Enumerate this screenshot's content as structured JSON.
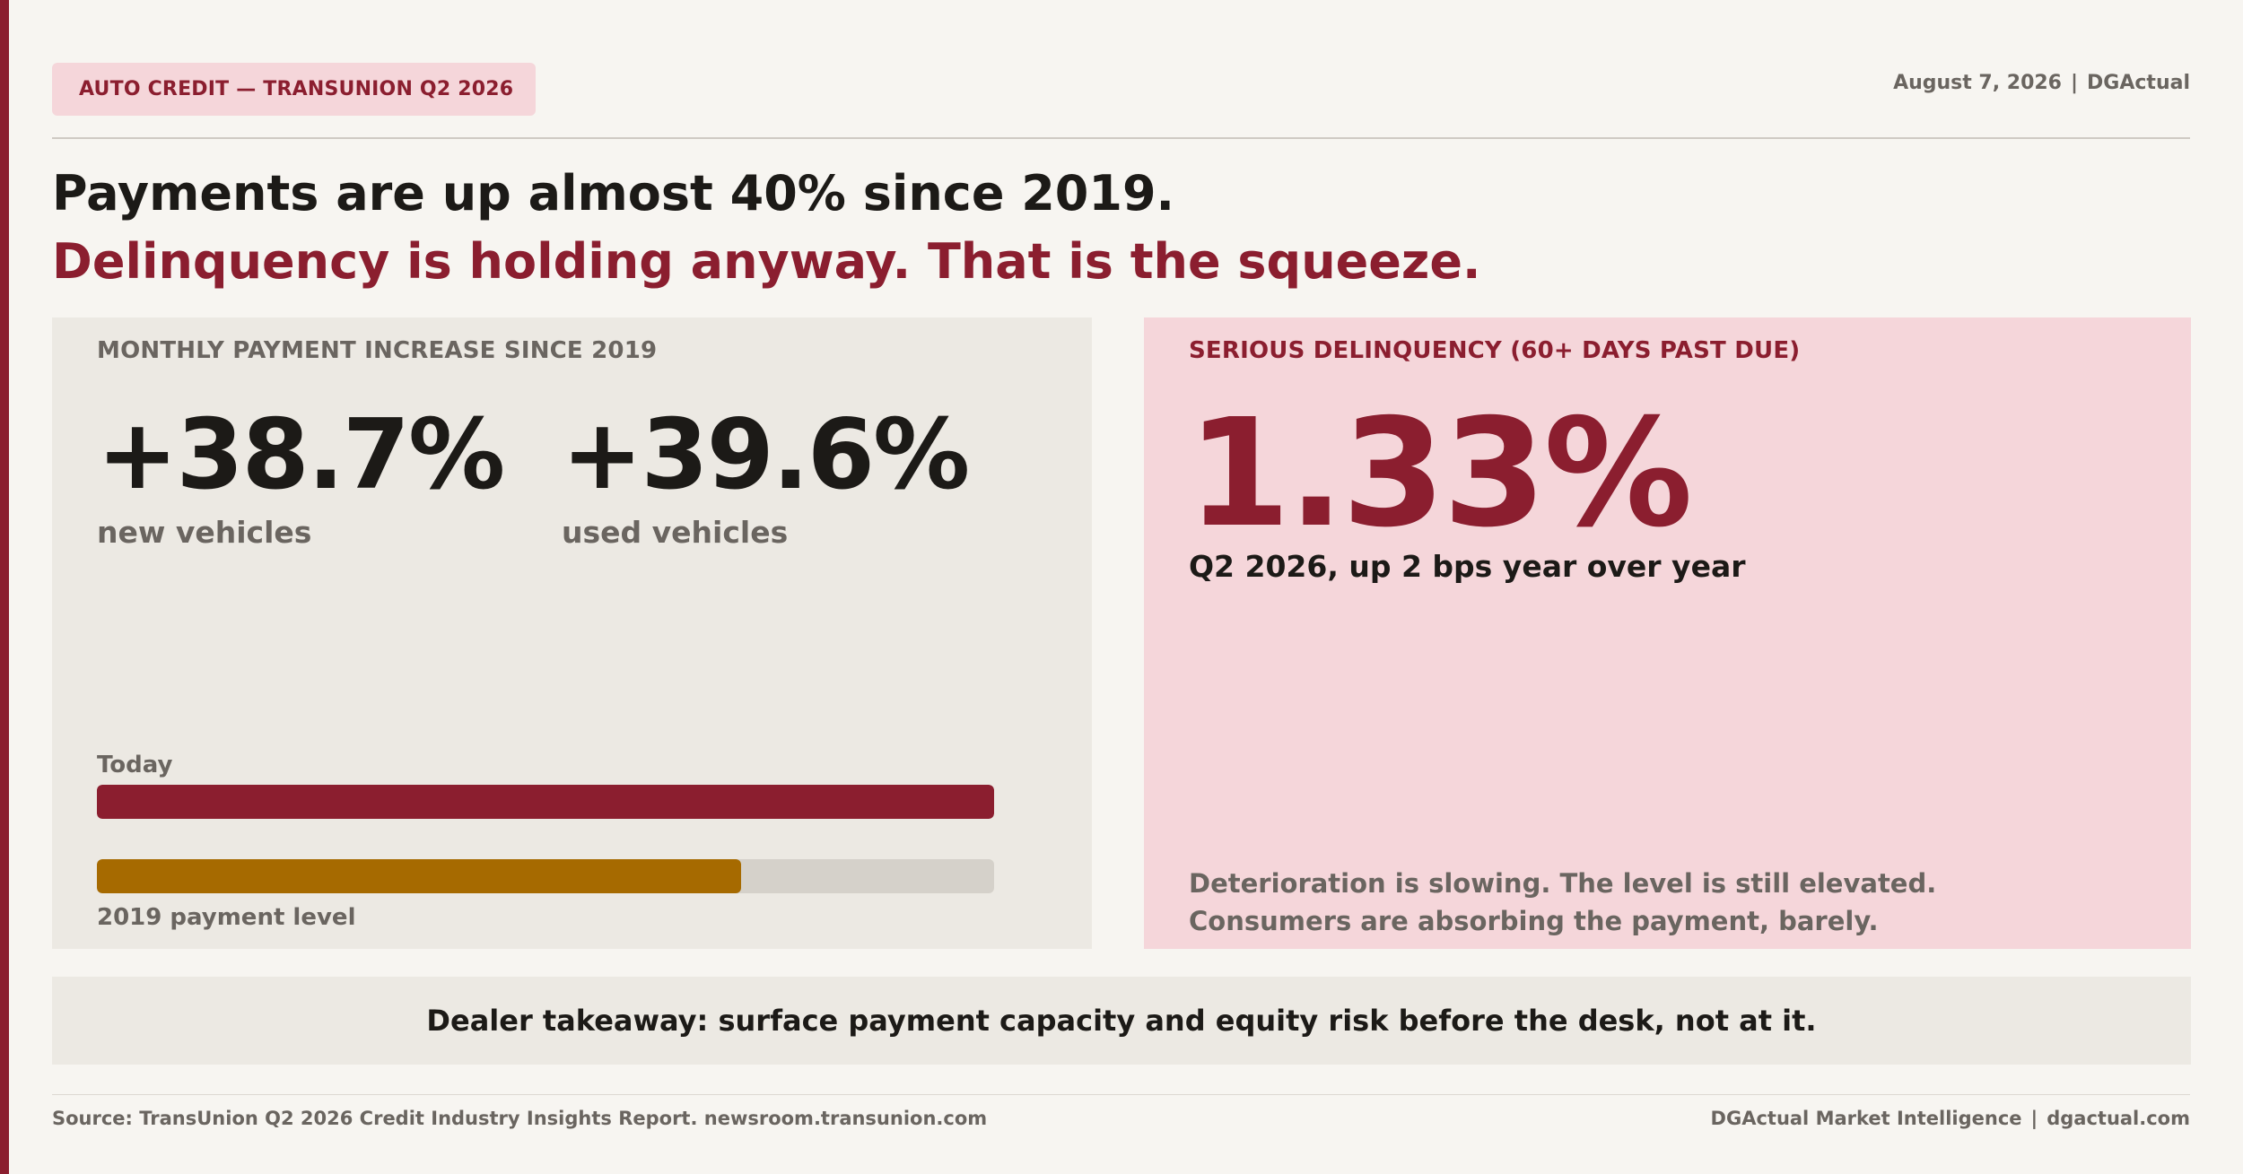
{
  "header": {
    "tag": "AUTO CREDIT — TRANSUNION Q2 2026",
    "date": "August 7, 2026",
    "separator": "|",
    "publisher": "DGActual"
  },
  "headline": {
    "line1": "Payments are up almost 40% since 2019.",
    "line2": "Delinquency is holding anyway. That is the squeeze."
  },
  "payment_panel": {
    "label": "MONTHLY PAYMENT INCREASE SINCE 2019",
    "stats": [
      {
        "value": "+38.7%",
        "caption": "new vehicles"
      },
      {
        "value": "+39.6%",
        "caption": "used vehicles"
      }
    ],
    "bars": {
      "today_label": "Today",
      "today_fraction": 1.0,
      "baseline_label": "2019 payment level",
      "baseline_fraction": 0.718
    }
  },
  "delinquency_panel": {
    "label": "SERIOUS DELINQUENCY (60+ DAYS PAST DUE)",
    "rate": "1.33%",
    "subtitle": "Q2 2026, up 2 bps year over year",
    "note_line1": "Deterioration is slowing. The level is still elevated.",
    "note_line2": "Consumers are absorbing the payment, barely."
  },
  "takeaway": "Dealer takeaway: surface payment capacity and equity risk before the desk, not at it.",
  "footer": {
    "source": "Source: TransUnion Q2 2026 Credit Industry Insights Report. newsroom.transunion.com",
    "brand": "DGActual Market Intelligence",
    "separator": "|",
    "site": "dgactual.com"
  },
  "colors": {
    "accent": "#8b1e2f",
    "baseline_bar": "#a66a00",
    "pink_panel": "#f5d6da",
    "neutral_panel": "#ece9e3",
    "background": "#f7f5f1"
  }
}
